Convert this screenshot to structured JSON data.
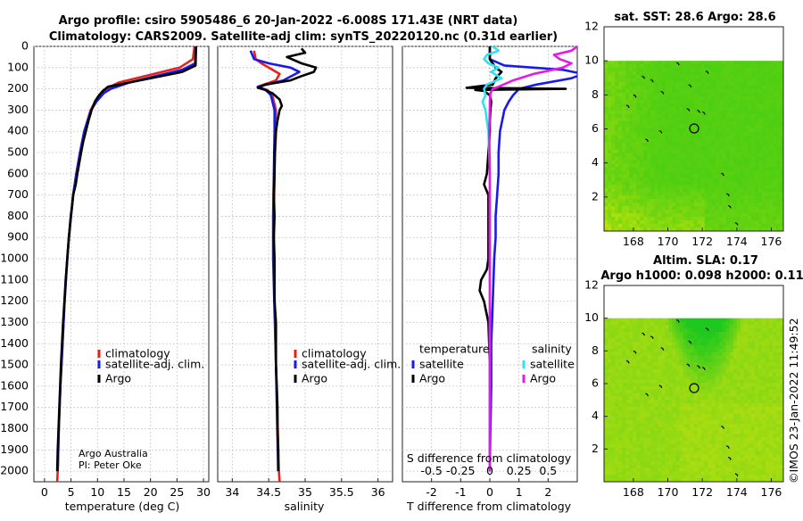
{
  "header": {
    "title_line1": "Argo profile: csiro 5905486_6 20-Jan-2022 -6.008S 171.43E (NRT data)",
    "title_line2": "Climatology: CARS2009. Satellite-adj clim: synTS_20220120.nc (0.31d earlier)"
  },
  "footer": {
    "credit_org": "Argo Australia",
    "credit_pi": "PI: Peter Oke",
    "imos_stamp": "©IMOS 23-Jan-2022 11:49:52"
  },
  "colors": {
    "climatology": "#e8201b",
    "satellite_adj": "#1a1ae6",
    "argo": "#000000",
    "sat_salinity": "#33e0f0",
    "argo_salinity": "#e61ae6"
  },
  "chart_data": [
    {
      "type": "line",
      "id": "temperature",
      "xlabel": "temperature (deg C)",
      "ylabel": "",
      "xlim": [
        -2,
        31
      ],
      "ylim": [
        2050,
        0
      ],
      "xticks": [
        0,
        5,
        10,
        15,
        20,
        25,
        30
      ],
      "yticks": [
        0,
        100,
        200,
        300,
        400,
        500,
        600,
        700,
        800,
        900,
        1000,
        1100,
        1200,
        1300,
        1400,
        1500,
        1600,
        1700,
        1800,
        1900,
        2000
      ],
      "legend": [
        "climatology",
        "satellite-adj. clim.",
        "Argo"
      ],
      "series": [
        {
          "name": "climatology",
          "color": "#e8201b",
          "depth": [
            0,
            60,
            100,
            140,
            170,
            195,
            210,
            240,
            300,
            400,
            500,
            600,
            700,
            800,
            900,
            1000,
            1200,
            1400,
            1600,
            1800,
            2000,
            2050
          ],
          "values": [
            28.3,
            28.0,
            25.5,
            19,
            14,
            12,
            11,
            10,
            8.7,
            7.5,
            6.7,
            6.0,
            5.4,
            5.0,
            4.6,
            4.3,
            3.8,
            3.4,
            3.0,
            2.7,
            2.5,
            2.4
          ]
        },
        {
          "name": "satellite-adj. clim.",
          "color": "#1a1ae6",
          "depth": [
            0,
            80,
            110,
            140,
            170,
            200,
            220,
            260,
            300,
            400,
            500,
            600,
            700,
            800,
            900,
            1000,
            1200,
            1400,
            1600,
            1800,
            2000
          ],
          "values": [
            28.6,
            28.4,
            26,
            21,
            16,
            12.5,
            11.2,
            9.8,
            8.8,
            7.5,
            6.7,
            6.0,
            5.4,
            5.0,
            4.6,
            4.3,
            3.8,
            3.4,
            3.0,
            2.7,
            2.5
          ]
        },
        {
          "name": "Argo",
          "color": "#000000",
          "depth": [
            0,
            90,
            120,
            160,
            190,
            200,
            210,
            230,
            260,
            300,
            350,
            400,
            450,
            500,
            600,
            650,
            700,
            750,
            800,
            900,
            1000,
            1100,
            1200,
            1300,
            1400,
            1500,
            1600,
            1700,
            1800,
            1900,
            2000
          ],
          "values": [
            28.6,
            28.5,
            26,
            18,
            12,
            11.5,
            11,
            10.3,
            9.5,
            8.9,
            8.3,
            7.8,
            7.3,
            6.9,
            6.2,
            5.9,
            5.4,
            5.2,
            4.95,
            4.6,
            4.3,
            4.0,
            3.75,
            3.5,
            3.3,
            3.1,
            2.95,
            2.8,
            2.65,
            2.5,
            2.4
          ]
        }
      ]
    },
    {
      "type": "line",
      "id": "salinity",
      "xlabel": "salinity",
      "xlim": [
        33.8,
        36.2
      ],
      "ylim": [
        2050,
        0
      ],
      "xticks": [
        34,
        34.5,
        35,
        35.5,
        36
      ],
      "xticklabels": [
        "34",
        "34.5",
        "35",
        "35.5",
        "36"
      ],
      "legend": [
        "climatology",
        "satellite-adj. clim.",
        "Argo"
      ],
      "series": [
        {
          "name": "climatology",
          "color": "#e8201b",
          "depth": [
            20,
            60,
            80,
            100,
            130,
            160,
            190,
            205,
            230,
            300,
            400,
            600,
            800,
            1000,
            1500,
            2000,
            2050
          ],
          "values": [
            34.3,
            34.32,
            34.4,
            34.5,
            34.65,
            34.6,
            34.35,
            34.48,
            34.55,
            34.6,
            34.6,
            34.58,
            34.57,
            34.57,
            34.6,
            34.64,
            34.65
          ]
        },
        {
          "name": "satellite-adj. clim.",
          "color": "#1a1ae6",
          "depth": [
            20,
            60,
            80,
            100,
            120,
            160,
            190,
            205,
            230,
            300,
            400,
            600,
            800,
            1000,
            1500,
            2000
          ],
          "values": [
            34.25,
            34.3,
            34.5,
            34.8,
            34.92,
            34.7,
            34.35,
            34.46,
            34.53,
            34.58,
            34.58,
            34.57,
            34.56,
            34.56,
            34.6,
            34.63
          ]
        },
        {
          "name": "Argo",
          "color": "#000000",
          "depth": [
            10,
            30,
            50,
            80,
            100,
            120,
            140,
            160,
            180,
            195,
            205,
            220,
            250,
            280,
            300,
            350,
            400,
            500,
            600,
            700,
            800,
            900,
            1000,
            1100,
            1200,
            1300,
            1400,
            1500,
            1600,
            1700,
            1800,
            1900,
            2000
          ],
          "values": [
            34.95,
            35.0,
            34.75,
            34.95,
            35.15,
            35.12,
            34.95,
            34.8,
            34.45,
            34.35,
            34.45,
            34.55,
            34.65,
            34.68,
            34.65,
            34.62,
            34.6,
            34.58,
            34.58,
            34.57,
            34.58,
            34.57,
            34.58,
            34.58,
            34.58,
            34.6,
            34.6,
            34.6,
            34.61,
            34.62,
            34.62,
            34.63,
            34.63
          ]
        }
      ]
    },
    {
      "type": "line",
      "id": "difference",
      "xlabel": "T difference from climatology",
      "xlabel_top": "S difference from climatology",
      "xlim": [
        -3,
        3
      ],
      "ylim": [
        2050,
        0
      ],
      "xticks": [
        -2,
        -1,
        0,
        1,
        2
      ],
      "xticklabels": [
        "-2",
        "-1",
        "0",
        "1",
        "2"
      ],
      "s_ticklabels": [
        "-0.5",
        "-0.25",
        "0",
        "0.25",
        "0.5"
      ],
      "s_tick_positions": [
        -2,
        -1,
        0,
        1,
        2
      ],
      "legend_temperature_title": "temperature",
      "legend_salinity_title": "salinity",
      "legend_temperature": [
        "satellite",
        "Argo"
      ],
      "legend_salinity": [
        "satellite",
        "Argo"
      ],
      "series": [
        {
          "name": "T satellite",
          "color": "#1a1ae6",
          "depth": [
            0,
            60,
            90,
            110,
            130,
            150,
            180,
            200,
            230,
            260,
            300,
            400,
            500,
            600,
            700,
            800,
            900,
            1000,
            1200,
            1400,
            1600,
            1800,
            2000
          ],
          "values": [
            0,
            0,
            0.5,
            2.5,
            3.2,
            2.8,
            1.6,
            1.0,
            0.8,
            0.65,
            0.5,
            0.35,
            0.3,
            0.3,
            0.25,
            0.2,
            0.2,
            0.15,
            0.1,
            0.05,
            0.05,
            0.02,
            0.0
          ]
        },
        {
          "name": "T Argo",
          "color": "#000000",
          "depth": [
            0,
            60,
            100,
            120,
            150,
            180,
            195,
            200,
            205,
            210,
            230,
            260,
            300,
            350,
            400,
            500,
            600,
            650,
            700,
            800,
            900,
            1000,
            1050,
            1100,
            1150,
            1200,
            1300,
            1500,
            1700,
            2000
          ],
          "values": [
            0,
            0,
            0.2,
            0.4,
            0.2,
            0.1,
            -0.8,
            2.6,
            -0.5,
            -0.2,
            0,
            0.05,
            0.02,
            0,
            0.0,
            -0.05,
            -0.1,
            -0.2,
            -0.05,
            -0.05,
            -0.05,
            -0.05,
            -0.1,
            -0.3,
            -0.35,
            -0.2,
            -0.05,
            0,
            0,
            0.0
          ]
        },
        {
          "name": "S satellite",
          "color": "#33e0f0",
          "depth": [
            0,
            20,
            40,
            60,
            80,
            100,
            120,
            150,
            180,
            200,
            230,
            260,
            300,
            350,
            400,
            500,
            600,
            800,
            1000,
            1500,
            2000
          ],
          "values": [
            0.1,
            0.3,
            -0.1,
            -0.2,
            -0.05,
            0.3,
            0.05,
            0.4,
            -0.1,
            -0.2,
            -0.15,
            -0.25,
            -0.15,
            -0.1,
            -0.05,
            -0.02,
            0,
            0,
            0,
            0,
            0
          ]
        },
        {
          "name": "S Argo",
          "color": "#e61ae6",
          "depth": [
            0,
            20,
            40,
            60,
            80,
            100,
            130,
            160,
            190,
            200,
            220,
            260,
            300,
            400,
            600,
            800,
            1000,
            1500,
            2000
          ],
          "values": [
            3,
            2.8,
            2.2,
            2.4,
            2.8,
            2.5,
            1.5,
            0.8,
            0.3,
            0.1,
            0.02,
            0,
            0,
            -0.02,
            0,
            0,
            0,
            0,
            0
          ]
        }
      ]
    },
    {
      "type": "heatmap",
      "id": "sst-map",
      "title": "sat. SST: 28.6 Argo: 28.6",
      "xlim": [
        166.3,
        176.7
      ],
      "ylim": [
        0,
        12
      ],
      "xticks": [
        168,
        170,
        172,
        174,
        176
      ],
      "yticks": [
        2,
        4,
        6,
        8,
        10,
        12
      ],
      "data_extent_lat": [
        0,
        10
      ],
      "float_position": {
        "lon": 171.43,
        "lat": 6.0
      }
    },
    {
      "type": "heatmap",
      "id": "sla-map",
      "title_line1": "Altim. SLA: 0.17",
      "title_line2": "Argo h1000: 0.098 h2000: 0.11",
      "xlim": [
        166.3,
        176.7
      ],
      "ylim": [
        0,
        12
      ],
      "xticks": [
        168,
        170,
        172,
        174,
        176
      ],
      "yticks": [
        2,
        4,
        6,
        8,
        10,
        12
      ],
      "data_extent_lat": [
        0,
        10
      ],
      "float_position": {
        "lon": 171.43,
        "lat": 6.0
      }
    }
  ]
}
